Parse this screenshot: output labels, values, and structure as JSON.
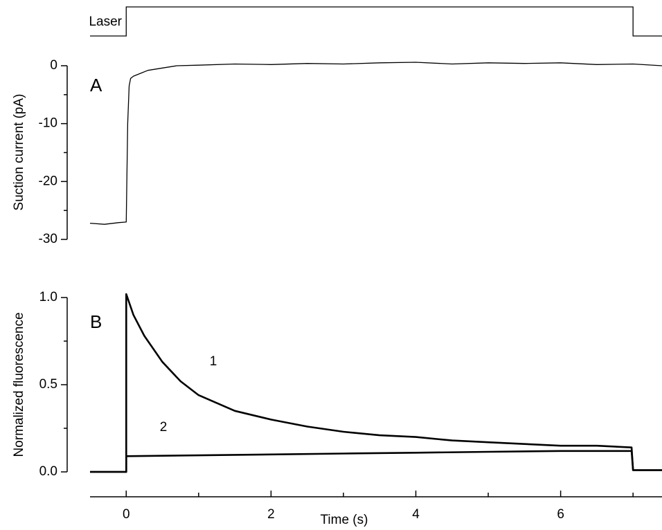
{
  "chart_data": [
    {
      "type": "line",
      "panel_label": "A",
      "ylabel": "Suction current (pA)",
      "laser": {
        "label": "Laser",
        "x": [
          0,
          7
        ]
      },
      "xlim": [
        -0.5,
        7.4
      ],
      "ylim": [
        -30,
        0
      ],
      "yticks": [
        0,
        -10,
        -20,
        -30
      ],
      "yminor_ticks": [
        -5,
        -15,
        -25
      ],
      "series": [
        {
          "color": "#000000",
          "x": [
            -0.5,
            -0.3,
            -0.1,
            0,
            0.02,
            0.04,
            0.06,
            0.1,
            0.2,
            0.3,
            0.5,
            0.7,
            1,
            1.5,
            2,
            2.5,
            3,
            3.5,
            4,
            4.5,
            5,
            5.5,
            6,
            6.5,
            7,
            7.4
          ],
          "values": [
            -27.2,
            -27.4,
            -27.1,
            -27,
            -10,
            -3.5,
            -2.2,
            -1.8,
            -1.3,
            -0.8,
            -0.4,
            0,
            0.1,
            0.3,
            0.2,
            0.4,
            0.3,
            0.5,
            0.6,
            0.3,
            0.5,
            0.4,
            0.5,
            0.2,
            0.3,
            0
          ]
        }
      ]
    },
    {
      "type": "line",
      "panel_label": "B",
      "ylabel": "Normalized fluorescence",
      "xlabel": "Time (s)",
      "xlim": [
        -0.5,
        7.4
      ],
      "xticks": [
        0,
        2,
        4,
        6
      ],
      "xminor_ticks": [
        1,
        3,
        5,
        7
      ],
      "ylim": [
        0,
        1
      ],
      "yticks": [
        {
          "value": 1,
          "label": "1.0"
        },
        0.5,
        {
          "value": 0,
          "label": "0.0"
        }
      ],
      "yminor_ticks": [
        0.25,
        0.75
      ],
      "series": [
        {
          "name": "1",
          "color": "#000000",
          "x": [
            -0.5,
            -0.2,
            0,
            0,
            0.1,
            0.25,
            0.5,
            0.75,
            1,
            1.5,
            2,
            2.5,
            3,
            3.5,
            4,
            4.5,
            5,
            5.5,
            6,
            6.5,
            6.98,
            7,
            7.2,
            7.4
          ],
          "values": [
            0,
            0,
            0,
            1.02,
            0.9,
            0.78,
            0.63,
            0.52,
            0.44,
            0.35,
            0.3,
            0.26,
            0.23,
            0.21,
            0.2,
            0.18,
            0.17,
            0.16,
            0.15,
            0.15,
            0.14,
            0.01,
            0.01,
            0.01
          ]
        },
        {
          "name": "2",
          "color": "#000000",
          "x": [
            -0.5,
            0,
            0,
            1,
            2,
            3,
            4,
            5,
            6,
            6.98,
            7,
            7.4
          ],
          "values": [
            0,
            0,
            0.09,
            0.095,
            0.1,
            0.105,
            0.11,
            0.115,
            0.12,
            0.12,
            0.01,
            0.01
          ]
        }
      ]
    }
  ]
}
